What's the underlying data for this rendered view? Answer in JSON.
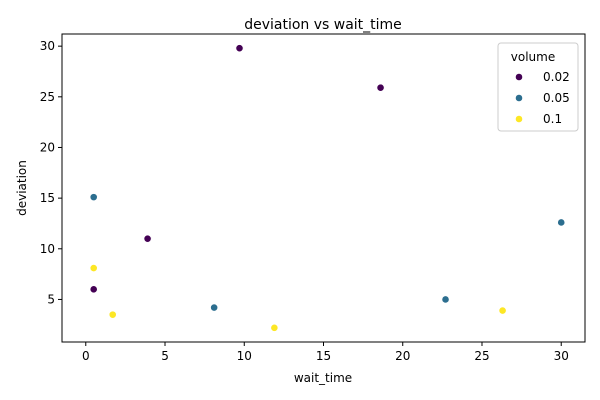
{
  "chart_data": {
    "type": "scatter",
    "title": "deviation vs wait_time",
    "xlabel": "wait_time",
    "ylabel": "deviation",
    "xlim": [
      -1.5,
      31.5
    ],
    "ylim": [
      0.8,
      31.2
    ],
    "xticks": [
      0,
      5,
      10,
      15,
      20,
      25,
      30
    ],
    "yticks": [
      5,
      10,
      15,
      20,
      25,
      30
    ],
    "grid": false,
    "legend": {
      "title": "volume",
      "placement": "top-right"
    },
    "series": [
      {
        "name": "0.02",
        "color": "#440154",
        "points": [
          {
            "x": 9.7,
            "y": 29.8
          },
          {
            "x": 18.6,
            "y": 25.9
          },
          {
            "x": 3.9,
            "y": 11.0
          },
          {
            "x": 0.5,
            "y": 6.0
          }
        ]
      },
      {
        "name": "0.05",
        "color": "#2c6e8f",
        "points": [
          {
            "x": 0.5,
            "y": 15.1
          },
          {
            "x": 30.0,
            "y": 12.6
          },
          {
            "x": 8.1,
            "y": 4.2
          },
          {
            "x": 22.7,
            "y": 5.0
          }
        ]
      },
      {
        "name": "0.1",
        "color": "#fde725",
        "points": [
          {
            "x": 0.5,
            "y": 8.1
          },
          {
            "x": 1.7,
            "y": 3.5
          },
          {
            "x": 11.9,
            "y": 2.2
          },
          {
            "x": 26.3,
            "y": 3.9
          }
        ]
      }
    ]
  }
}
